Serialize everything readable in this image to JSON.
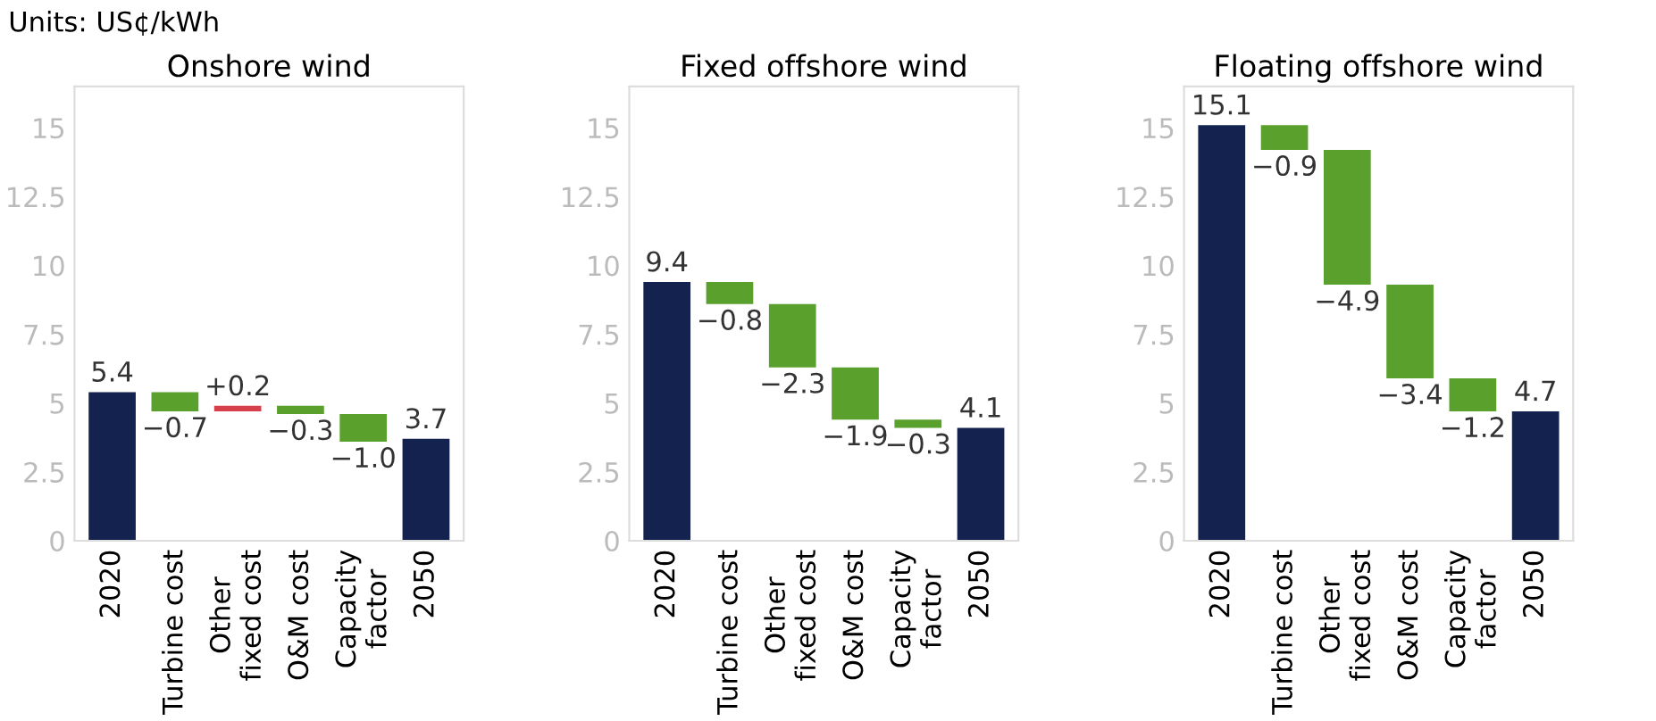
{
  "chart_data": [
    {
      "type": "bar",
      "title": "Onshore wind",
      "annotations": [
        "Units: US¢/kWh"
      ],
      "categories": [
        "2020",
        "Turbine cost",
        "Other\nfixed cost",
        "O&M cost",
        "Capacity\nfactor",
        "2050"
      ],
      "values": [
        5.4,
        -0.7,
        0.2,
        -0.3,
        -1.0,
        3.7
      ],
      "base": [
        0,
        5.4,
        4.7,
        4.9,
        4.6,
        0
      ],
      "colors": [
        "#14224f",
        "#5aa02c",
        "#d6404a",
        "#5aa02c",
        "#5aa02c",
        "#14224f"
      ],
      "value_labels": [
        "5.4",
        "−0.7",
        "+0.2",
        "−0.3",
        "−1.0",
        "3.7"
      ],
      "ylim": [
        0,
        16.5
      ],
      "yticks": [
        0,
        2.5,
        5,
        7.5,
        10,
        12.5,
        15
      ],
      "grid": false
    },
    {
      "type": "bar",
      "title": "Fixed offshore wind",
      "categories": [
        "2020",
        "Turbine cost",
        "Other\nfixed cost",
        "O&M cost",
        "Capacity\nfactor",
        "2050"
      ],
      "values": [
        9.4,
        -0.8,
        -2.3,
        -1.9,
        -0.3,
        4.1
      ],
      "base": [
        0,
        9.4,
        8.6,
        6.3,
        4.4,
        0
      ],
      "colors": [
        "#14224f",
        "#5aa02c",
        "#5aa02c",
        "#5aa02c",
        "#5aa02c",
        "#14224f"
      ],
      "value_labels": [
        "9.4",
        "−0.8",
        "−2.3",
        "−1.9",
        "−0.3",
        "4.1"
      ],
      "ylim": [
        0,
        16.5
      ],
      "yticks": [
        0,
        2.5,
        5,
        7.5,
        10,
        12.5,
        15
      ],
      "grid": false
    },
    {
      "type": "bar",
      "title": "Floating offshore wind",
      "categories": [
        "2020",
        "Turbine cost",
        "Other\nfixed cost",
        "O&M cost",
        "Capacity\nfactor",
        "2050"
      ],
      "values": [
        15.1,
        -0.9,
        -4.9,
        -3.4,
        -1.2,
        4.7
      ],
      "base": [
        0,
        15.1,
        14.2,
        9.3,
        5.9,
        0
      ],
      "colors": [
        "#14224f",
        "#5aa02c",
        "#5aa02c",
        "#5aa02c",
        "#5aa02c",
        "#14224f"
      ],
      "value_labels": [
        "15.1",
        "−0.9",
        "−4.9",
        "−3.4",
        "−1.2",
        "4.7"
      ],
      "ylim": [
        0,
        16.5
      ],
      "yticks": [
        0,
        2.5,
        5,
        7.5,
        10,
        12.5,
        15
      ],
      "grid": false
    }
  ]
}
